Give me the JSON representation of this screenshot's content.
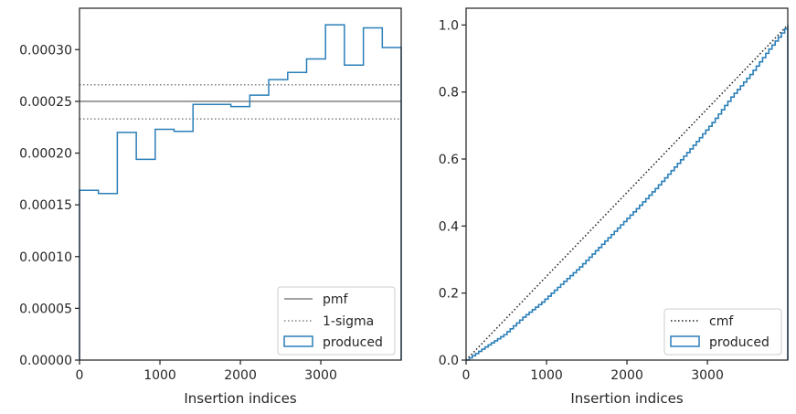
{
  "chart_data": [
    {
      "type": "histogram",
      "xlabel": "Insertion indices",
      "ylabel": "",
      "xlim": [
        0,
        3999
      ],
      "ylim": [
        0,
        0.00034
      ],
      "xticks": [
        0,
        1000,
        2000,
        3000
      ],
      "xtick_labels": [
        "0",
        "1000",
        "2000",
        "3000"
      ],
      "yticks": [
        0,
        5e-05,
        0.0001,
        0.00015,
        0.0002,
        0.00025,
        0.0003
      ],
      "ytick_labels": [
        "0.00000",
        "0.00005",
        "0.00010",
        "0.00015",
        "0.00020",
        "0.00025",
        "0.00030"
      ],
      "grid": false,
      "legend_position": "lower right",
      "histogram": {
        "name": "produced",
        "bin_edges": [
          0,
          235,
          470,
          706,
          941,
          1176,
          1411,
          1647,
          1882,
          2117,
          2352,
          2588,
          2823,
          3058,
          3293,
          3529,
          3764,
          3999
        ],
        "values": [
          0.000164,
          0.000161,
          0.00022,
          0.000194,
          0.000223,
          0.000221,
          0.000247,
          0.000247,
          0.000245,
          0.000256,
          0.000271,
          0.000278,
          0.000291,
          0.000324,
          0.000285,
          0.000321,
          0.000302
        ],
        "color": "#2a7fb8"
      },
      "pmf": {
        "name": "pmf",
        "value": 0.00025,
        "color": "#808080"
      },
      "sigma": {
        "name": "1-sigma",
        "values": [
          0.000233,
          0.000266
        ],
        "color": "#808080"
      },
      "legend": [
        {
          "label": "pmf",
          "style": "solid-line"
        },
        {
          "label": "1-sigma",
          "style": "dotted-line"
        },
        {
          "label": "produced",
          "style": "patch"
        }
      ]
    },
    {
      "type": "line",
      "xlabel": "Insertion indices",
      "ylabel": "",
      "xlim": [
        0,
        3999
      ],
      "ylim": [
        0,
        1.05
      ],
      "xticks": [
        0,
        1000,
        2000,
        3000
      ],
      "xtick_labels": [
        "0",
        "1000",
        "2000",
        "3000"
      ],
      "yticks": [
        0,
        0.2,
        0.4,
        0.6,
        0.8,
        1.0
      ],
      "ytick_labels": [
        "0.0",
        "0.2",
        "0.4",
        "0.6",
        "0.8",
        "1.0"
      ],
      "grid": false,
      "legend_position": "lower right",
      "series": [
        {
          "name": "cmf",
          "x": [
            0,
            3999
          ],
          "y": [
            0,
            1.0
          ],
          "color": "#1a1a1a",
          "style": "dotted"
        },
        {
          "name": "produced",
          "x": [
            0,
            235,
            470,
            706,
            941,
            1176,
            1411,
            1647,
            1882,
            2117,
            2352,
            2588,
            2823,
            3058,
            3293,
            3529,
            3764,
            3999
          ],
          "y": [
            0,
            0.039,
            0.076,
            0.128,
            0.173,
            0.226,
            0.278,
            0.336,
            0.394,
            0.452,
            0.512,
            0.576,
            0.641,
            0.709,
            0.785,
            0.852,
            0.928,
            1.0
          ],
          "color": "#2a7fb8",
          "style": "step"
        }
      ],
      "legend": [
        {
          "label": "cmf",
          "style": "dotted-line"
        },
        {
          "label": "produced",
          "style": "patch"
        }
      ]
    }
  ]
}
